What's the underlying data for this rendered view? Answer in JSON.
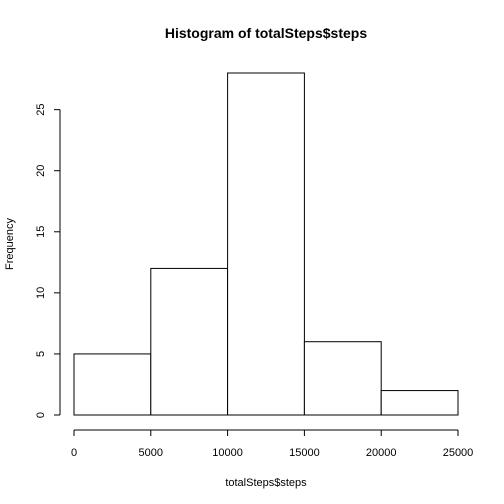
{
  "chart_data": {
    "type": "bar",
    "subtype": "histogram",
    "title": "Histogram of totalSteps$steps",
    "xlabel": "totalSteps$steps",
    "ylabel": "Frequency",
    "bins": [
      {
        "from": 0,
        "to": 5000,
        "count": 5
      },
      {
        "from": 5000,
        "to": 10000,
        "count": 12
      },
      {
        "from": 10000,
        "to": 15000,
        "count": 28
      },
      {
        "from": 15000,
        "to": 20000,
        "count": 6
      },
      {
        "from": 20000,
        "to": 25000,
        "count": 2
      }
    ],
    "xlim": [
      0,
      25000
    ],
    "ylim": [
      0,
      28
    ],
    "x_ticks": [
      0,
      5000,
      10000,
      15000,
      20000,
      25000
    ],
    "x_tick_labels": [
      "0",
      "5000",
      "10000",
      "15000",
      "20000",
      "25000"
    ],
    "y_ticks": [
      0,
      5,
      10,
      15,
      20,
      25
    ],
    "y_tick_labels": [
      "0",
      "5",
      "10",
      "15",
      "20",
      "25"
    ],
    "grid": false,
    "bar_fill": "#ffffff",
    "bar_stroke": "#000000"
  }
}
